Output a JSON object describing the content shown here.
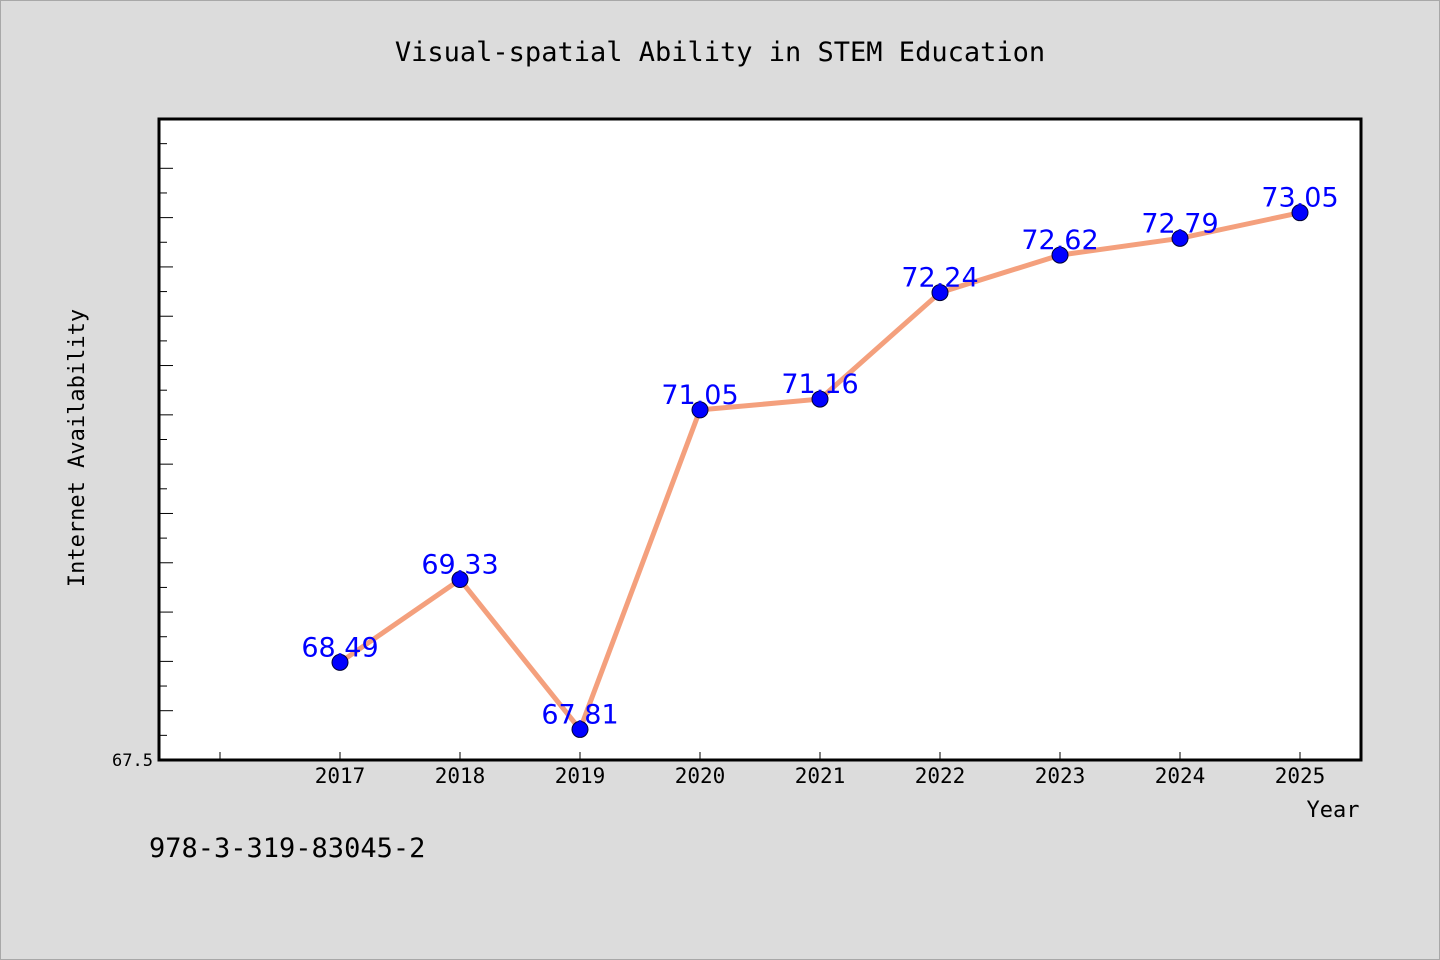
{
  "chart_data": {
    "type": "line",
    "title": "Visual-spatial Ability in STEM Education",
    "xlabel": "Year",
    "ylabel": "Internet Availability",
    "x": [
      "2017",
      "2018",
      "2019",
      "2020",
      "2021",
      "2022",
      "2023",
      "2024",
      "2025"
    ],
    "series": [
      {
        "values": [
          68.49,
          69.33,
          67.81,
          71.05,
          71.16,
          72.24,
          72.62,
          72.79,
          73.05
        ],
        "labels": [
          "68.49",
          "69.33",
          "67.81",
          "71.05",
          "71.16",
          "72.24",
          "72.62",
          "72.79",
          "73.05"
        ]
      }
    ],
    "ylim": [
      67.5,
      74.0
    ],
    "yticks_labeled": [
      "67.5"
    ],
    "grid": false,
    "legend": "none",
    "colors": {
      "line": "#f4a07d",
      "marker": "#0000ff",
      "data_label": "#0000ff",
      "background": "#dcdcdc",
      "plot_background": "#ffffff"
    }
  },
  "footnote": "978-3-319-83045-2"
}
